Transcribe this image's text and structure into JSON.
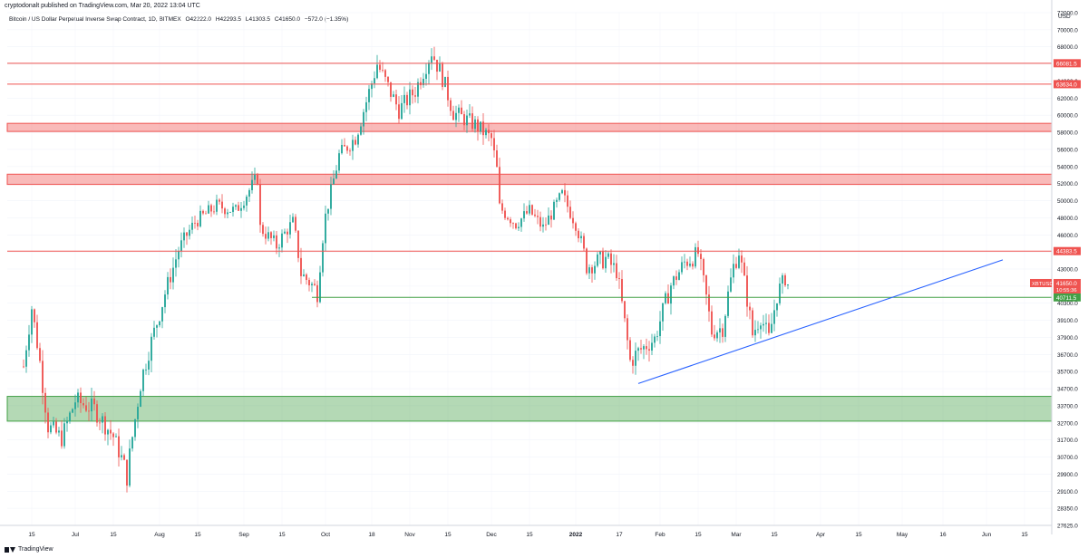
{
  "header": {
    "published": "cryptodonalt published on TradingView.com, Mar 20, 2022 13:04 UTC"
  },
  "legend": {
    "symbol": "Bitcoin / US Dollar Perpetual Inverse Swap Contract, 1D, BITMEX",
    "open": "O42222.0",
    "high": "H42293.5",
    "low": "L41303.5",
    "close": "C41650.0",
    "change": "−572.0 (−1.35%)"
  },
  "footer": {
    "brand": "TradingView"
  },
  "chart_data": {
    "type": "candlestick",
    "currency_label": "USD",
    "y_axis_ticks": [
      27625.0,
      28350.0,
      29100.0,
      29900.0,
      30700.0,
      31700.0,
      32700.0,
      33700.0,
      34700.0,
      35700.0,
      36700.0,
      37900.0,
      39100.0,
      40300.0,
      41500.0,
      43000.0,
      44300.0,
      46000.0,
      48000.0,
      50000.0,
      52000.0,
      54000.0,
      56000.0,
      58000.0,
      60000.0,
      62000.0,
      64000.0,
      66000.0,
      68000.0,
      70000.0,
      72000.0
    ],
    "x_axis_labels": [
      "15",
      "Jul",
      "15",
      "Aug",
      "15",
      "Sep",
      "15",
      "Oct",
      "18",
      "Nov",
      "15",
      "Dec",
      "15",
      "2022",
      "17",
      "Feb",
      "15",
      "Mar",
      "15",
      "Apr",
      "15",
      "May",
      "16",
      "Jun",
      "15"
    ],
    "x_axis_dates": [
      "2021-06-15",
      "2021-07-01",
      "2021-07-15",
      "2021-08-01",
      "2021-08-15",
      "2021-09-01",
      "2021-09-15",
      "2021-10-01",
      "2021-10-18",
      "2021-11-01",
      "2021-11-15",
      "2021-12-01",
      "2021-12-15",
      "2022-01-01",
      "2022-01-17",
      "2022-02-01",
      "2022-02-15",
      "2022-03-01",
      "2022-03-15",
      "2022-04-01",
      "2022-04-15",
      "2022-05-01",
      "2022-05-16",
      "2022-06-01",
      "2022-06-15"
    ],
    "horizontal_lines": [
      {
        "price": 66081.5,
        "label": "66081.5",
        "color": "#ef5350"
      },
      {
        "price": 63634.0,
        "label": "63634.0",
        "color": "#ef5350"
      },
      {
        "price": 44383.5,
        "label": "44383.5",
        "color": "#ef5350"
      },
      {
        "price": 40711.5,
        "label": "40711.5",
        "color": "#43a047"
      }
    ],
    "zones": [
      {
        "from": 58100,
        "to": 59050,
        "color": "#ef5350"
      },
      {
        "from": 51900,
        "to": 53100,
        "color": "#ef5350"
      },
      {
        "from": 32800,
        "to": 34250,
        "color": "#43a047"
      }
    ],
    "trendline": {
      "from": {
        "date": "2022-01-24",
        "price": 35000
      },
      "to": {
        "date": "2022-06-07",
        "price": 43700
      },
      "color": "#2962ff"
    },
    "last_price": {
      "symbol": "XBTUSD",
      "price": "41650.0",
      "countdown": "10:55:36",
      "value": 41650.0,
      "color": "#ef5350"
    },
    "up_color": "#26a69a",
    "down_color": "#ef5350",
    "series": [
      {
        "date": "2021-06-12",
        "close": 36000
      },
      {
        "date": "2021-06-15",
        "close": 40000
      },
      {
        "date": "2021-06-21",
        "close": 32500
      },
      {
        "date": "2021-06-26",
        "close": 31800
      },
      {
        "date": "2021-07-01",
        "close": 34000
      },
      {
        "date": "2021-07-08",
        "close": 33500
      },
      {
        "date": "2021-07-15",
        "close": 31900
      },
      {
        "date": "2021-07-20",
        "close": 29800
      },
      {
        "date": "2021-07-25",
        "close": 35000
      },
      {
        "date": "2021-08-01",
        "close": 39600
      },
      {
        "date": "2021-08-08",
        "close": 44500
      },
      {
        "date": "2021-08-14",
        "close": 47500
      },
      {
        "date": "2021-08-22",
        "close": 49400
      },
      {
        "date": "2021-08-29",
        "close": 48800
      },
      {
        "date": "2021-09-06",
        "close": 52700
      },
      {
        "date": "2021-09-07",
        "close": 46800
      },
      {
        "date": "2021-09-13",
        "close": 44900
      },
      {
        "date": "2021-09-19",
        "close": 47500
      },
      {
        "date": "2021-09-22",
        "close": 42600
      },
      {
        "date": "2021-09-28",
        "close": 41100
      },
      {
        "date": "2021-10-01",
        "close": 48200
      },
      {
        "date": "2021-10-06",
        "close": 55300
      },
      {
        "date": "2021-10-12",
        "close": 57400
      },
      {
        "date": "2021-10-16",
        "close": 61600
      },
      {
        "date": "2021-10-20",
        "close": 66000
      },
      {
        "date": "2021-10-28",
        "close": 60600
      },
      {
        "date": "2021-11-03",
        "close": 62900
      },
      {
        "date": "2021-11-09",
        "close": 67500
      },
      {
        "date": "2021-11-13",
        "close": 64400
      },
      {
        "date": "2021-11-17",
        "close": 60300
      },
      {
        "date": "2021-11-25",
        "close": 58900
      },
      {
        "date": "2021-12-01",
        "close": 57200
      },
      {
        "date": "2021-12-03",
        "close": 53600
      },
      {
        "date": "2021-12-04",
        "close": 49200
      },
      {
        "date": "2021-12-10",
        "close": 47300
      },
      {
        "date": "2021-12-15",
        "close": 48800
      },
      {
        "date": "2021-12-20",
        "close": 46800
      },
      {
        "date": "2021-12-27",
        "close": 50700
      },
      {
        "date": "2022-01-01",
        "close": 47300
      },
      {
        "date": "2022-01-05",
        "close": 43200
      },
      {
        "date": "2022-01-12",
        "close": 43800
      },
      {
        "date": "2022-01-16",
        "close": 42800
      },
      {
        "date": "2022-01-21",
        "close": 36300
      },
      {
        "date": "2022-01-24",
        "close": 36900
      },
      {
        "date": "2022-01-30",
        "close": 37800
      },
      {
        "date": "2022-02-05",
        "close": 41600
      },
      {
        "date": "2022-02-10",
        "close": 43500
      },
      {
        "date": "2022-02-15",
        "close": 44200
      },
      {
        "date": "2022-02-20",
        "close": 38300
      },
      {
        "date": "2022-02-24",
        "close": 38600
      },
      {
        "date": "2022-02-28",
        "close": 43200
      },
      {
        "date": "2022-03-02",
        "close": 44400
      },
      {
        "date": "2022-03-07",
        "close": 38100
      },
      {
        "date": "2022-03-10",
        "close": 39400
      },
      {
        "date": "2022-03-13",
        "close": 37800
      },
      {
        "date": "2022-03-16",
        "close": 40900
      },
      {
        "date": "2022-03-19",
        "close": 42200
      },
      {
        "date": "2022-03-20",
        "close": 41650
      }
    ]
  }
}
